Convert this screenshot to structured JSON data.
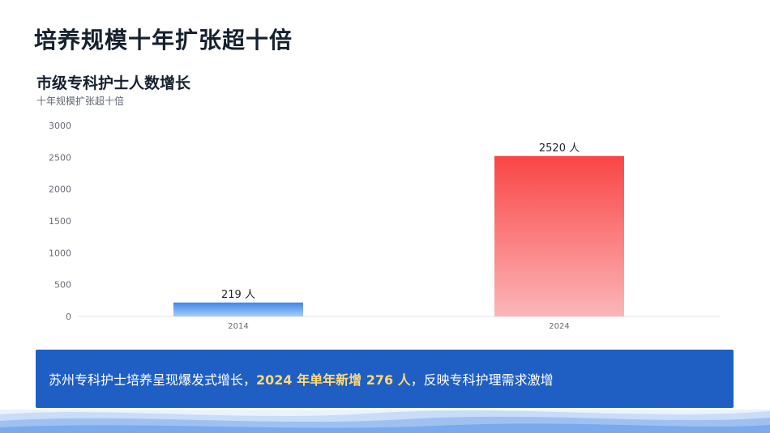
{
  "slide": {
    "title": "培养规模十年扩张超十倍"
  },
  "chart_data": {
    "type": "bar",
    "title": "市级专科护士人数增长",
    "subtitle": "十年规模扩张超十倍",
    "categories": [
      "2014",
      "2024"
    ],
    "values": [
      219,
      2520
    ],
    "data_labels": [
      "219 人",
      "2520 人"
    ],
    "ylim": [
      0,
      3000
    ],
    "yticks": [
      0,
      500,
      1000,
      1500,
      2000,
      2500,
      3000
    ],
    "grid": false,
    "colors": {
      "bar_2014_top": "#3f87e8",
      "bar_2014_bottom": "#a9ccf6",
      "bar_2024_top": "#f94545",
      "bar_2024_bottom": "#fbb6b9"
    }
  },
  "callout": {
    "text_before": "苏州专科护士培养呈现爆发式增长，",
    "highlight": "2024 年单年新增 276 人",
    "text_after": "，反映专科护理需求激增",
    "background": "#1f5fc4",
    "highlight_color": "#ffd978"
  }
}
